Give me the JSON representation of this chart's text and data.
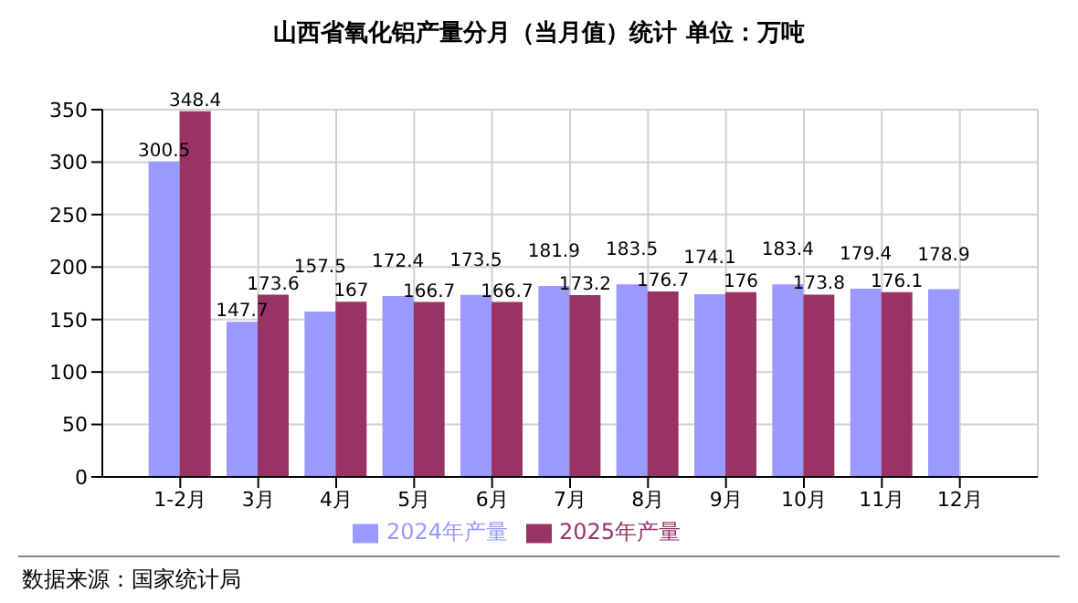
{
  "chart_data": {
    "type": "bar",
    "title": "山西省氧化铝产量分月（当月值）统计  单位：万吨",
    "categories": [
      "1-2月",
      "3月",
      "4月",
      "5月",
      "6月",
      "7月",
      "8月",
      "9月",
      "10月",
      "11月",
      "12月"
    ],
    "series": [
      {
        "name": "2024年产量",
        "color": "#9999ff",
        "values": [
          300.5,
          147.7,
          157.5,
          172.4,
          173.5,
          181.9,
          183.5,
          174.1,
          183.4,
          179.4,
          178.9
        ]
      },
      {
        "name": "2025年产量",
        "color": "#993366",
        "values": [
          348.4,
          173.6,
          167,
          166.7,
          166.7,
          173.2,
          176.7,
          176,
          173.8,
          176.1,
          null
        ]
      }
    ],
    "ylim": [
      0,
      350
    ],
    "yticks": [
      0,
      50,
      100,
      150,
      200,
      250,
      300,
      350
    ],
    "grid": true,
    "legend": "bottom",
    "data_labels": true,
    "annotations": [
      "数据来源：国家统计局"
    ]
  }
}
